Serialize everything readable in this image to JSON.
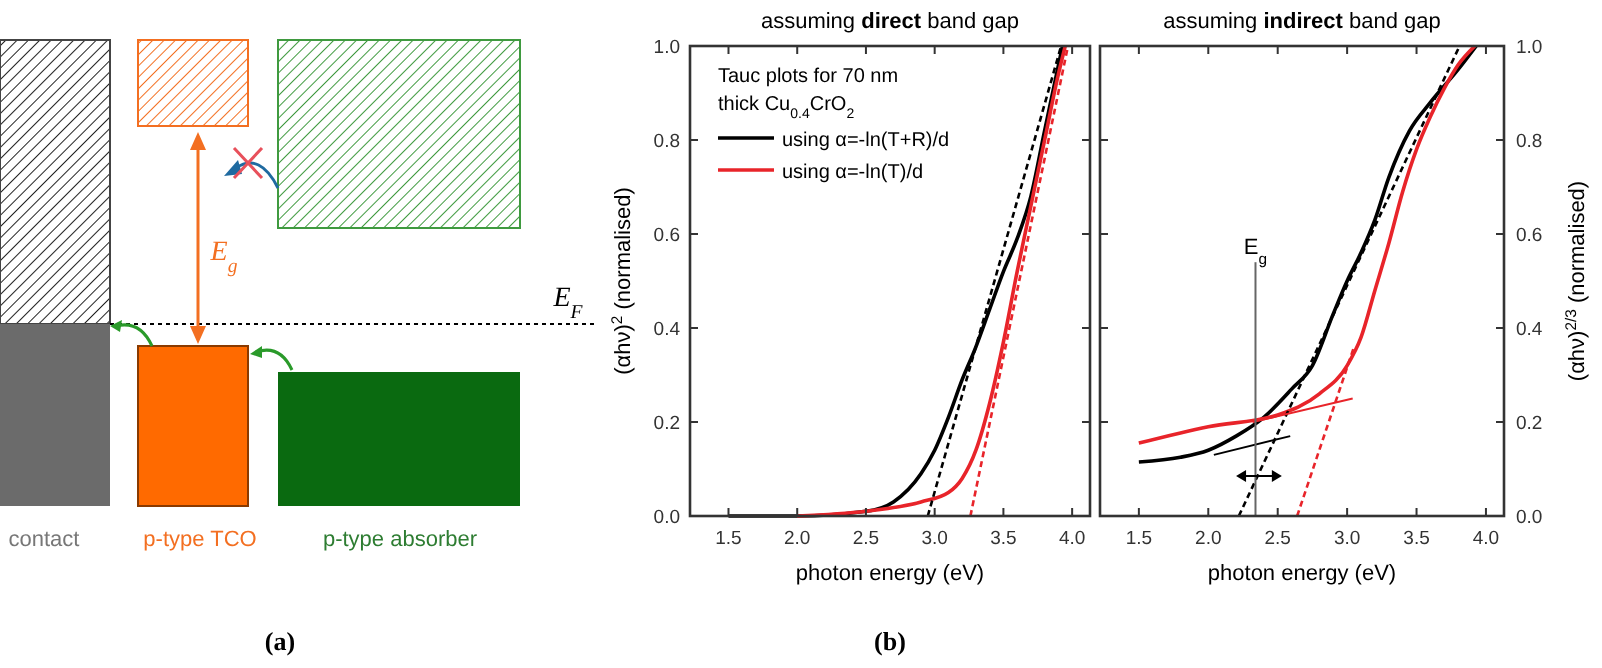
{
  "chart_data": [
    {
      "type": "other",
      "annotations": [
        "contact",
        "p-type TCO",
        "p-type absorber",
        "E$_{g}$",
        "E$_{F}$",
        "(a)"
      ]
    },
    {
      "type": "line",
      "title": "assuming direct band gap",
      "xlabel": "photon energy (eV)",
      "ylabel": "(αhν)$^{2}$ (normalised)",
      "xlim": [
        1.22,
        4.13
      ],
      "xticks": [
        1.5,
        {
          "value": 2,
          "label": "2.0"
        },
        2.5,
        {
          "value": 3,
          "label": "3.0"
        },
        3.5,
        {
          "value": 4,
          "label": "4.0"
        }
      ],
      "ylim": [
        0,
        1
      ],
      "yticks": [
        {
          "value": 0,
          "label": "0.0"
        },
        0.2,
        0.4,
        0.6,
        0.8,
        {
          "value": 1,
          "label": "1.0"
        }
      ],
      "legend": "top left",
      "legend_title": "Tauc plots for 70 nm thick Cu$_{0.4}$CrO$_{2}$",
      "grid": false,
      "annotations": [
        "(b)"
      ],
      "series": [
        {
          "name": "using α=-ln(T+R)/d",
          "color": "#000000",
          "x": [
            1.5,
            2.0,
            2.5,
            2.7,
            2.9,
            3.0,
            3.1,
            3.2,
            3.3,
            3.4,
            3.5,
            3.6,
            3.7,
            3.8,
            3.93
          ],
          "values": [
            0,
            0,
            0.01,
            0.03,
            0.09,
            0.14,
            0.21,
            0.29,
            0.36,
            0.44,
            0.52,
            0.59,
            0.68,
            0.82,
            1.0
          ]
        },
        {
          "name": "using α=-ln(T)/d",
          "color": "#e8242a",
          "x": [
            2.0,
            2.5,
            2.9,
            3.1,
            3.2,
            3.3,
            3.4,
            3.5,
            3.6,
            3.7,
            3.8,
            3.9,
            3.95
          ],
          "values": [
            0,
            0.01,
            0.03,
            0.05,
            0.08,
            0.14,
            0.24,
            0.37,
            0.52,
            0.66,
            0.8,
            0.94,
            1.0
          ]
        },
        {
          "color": "#000000",
          "line_style": "dashed",
          "x": [
            2.95,
            3.92
          ],
          "values": [
            0,
            1.0
          ]
        },
        {
          "color": "#e8242a",
          "line_style": "dashed",
          "x": [
            3.26,
            3.97
          ],
          "values": [
            0,
            1.0
          ]
        }
      ]
    },
    {
      "type": "line",
      "title": "assuming indirect band gap",
      "xlabel": "photon energy (eV)",
      "y2label": "(αhν)$^{2/3}$ (normalised)",
      "xlim": [
        1.22,
        4.13
      ],
      "xticks": [
        1.5,
        {
          "value": 2,
          "label": "2.0"
        },
        2.5,
        {
          "value": 3,
          "label": "3.0"
        },
        3.5,
        {
          "value": 4,
          "label": "4.0"
        }
      ],
      "y2lim": [
        0,
        1
      ],
      "y2ticks": [
        {
          "value": 0,
          "label": "0.0"
        },
        0.2,
        0.4,
        0.6,
        0.8,
        {
          "value": 1,
          "label": "1.0"
        }
      ],
      "grid": false,
      "annotations": [
        "E$_{g}$"
      ],
      "series": [
        {
          "color": "#000000",
          "axis": "y2",
          "x": [
            1.5,
            1.8,
            2.0,
            2.2,
            2.4,
            2.6,
            2.75,
            2.9,
            3.0,
            3.1,
            3.2,
            3.3,
            3.45,
            3.6,
            3.8,
            3.93
          ],
          "values": [
            0.115,
            0.125,
            0.14,
            0.17,
            0.21,
            0.27,
            0.32,
            0.43,
            0.5,
            0.56,
            0.63,
            0.72,
            0.82,
            0.88,
            0.95,
            1.0
          ]
        },
        {
          "color": "#e8242a",
          "axis": "y2",
          "x": [
            1.5,
            2.0,
            2.5,
            2.8,
            3.0,
            3.1,
            3.2,
            3.3,
            3.4,
            3.5,
            3.6,
            3.7,
            3.8,
            3.92
          ],
          "values": [
            0.155,
            0.19,
            0.215,
            0.26,
            0.32,
            0.38,
            0.48,
            0.58,
            0.69,
            0.78,
            0.85,
            0.91,
            0.96,
            1.0
          ]
        },
        {
          "color": "#000000",
          "axis": "y2",
          "line_style": "dashed",
          "x": [
            2.22,
            3.81
          ],
          "values": [
            0,
            1.0
          ]
        },
        {
          "color": "#e8242a",
          "axis": "y2",
          "line_style": "dashed",
          "x": [
            2.64,
            3.05
          ],
          "values": [
            0,
            0.36
          ]
        },
        {
          "color": "#000000",
          "axis": "y2",
          "x": [
            2.04,
            2.59
          ],
          "values": [
            0.13,
            0.17
          ]
        },
        {
          "color": "#e8242a",
          "axis": "y2",
          "x": [
            2.32,
            3.04
          ],
          "values": [
            0.2,
            0.25
          ]
        },
        {
          "color": "#666666",
          "axis": "y2",
          "x": [
            2.34,
            2.34
          ],
          "values": [
            0,
            0.54
          ]
        }
      ]
    }
  ]
}
